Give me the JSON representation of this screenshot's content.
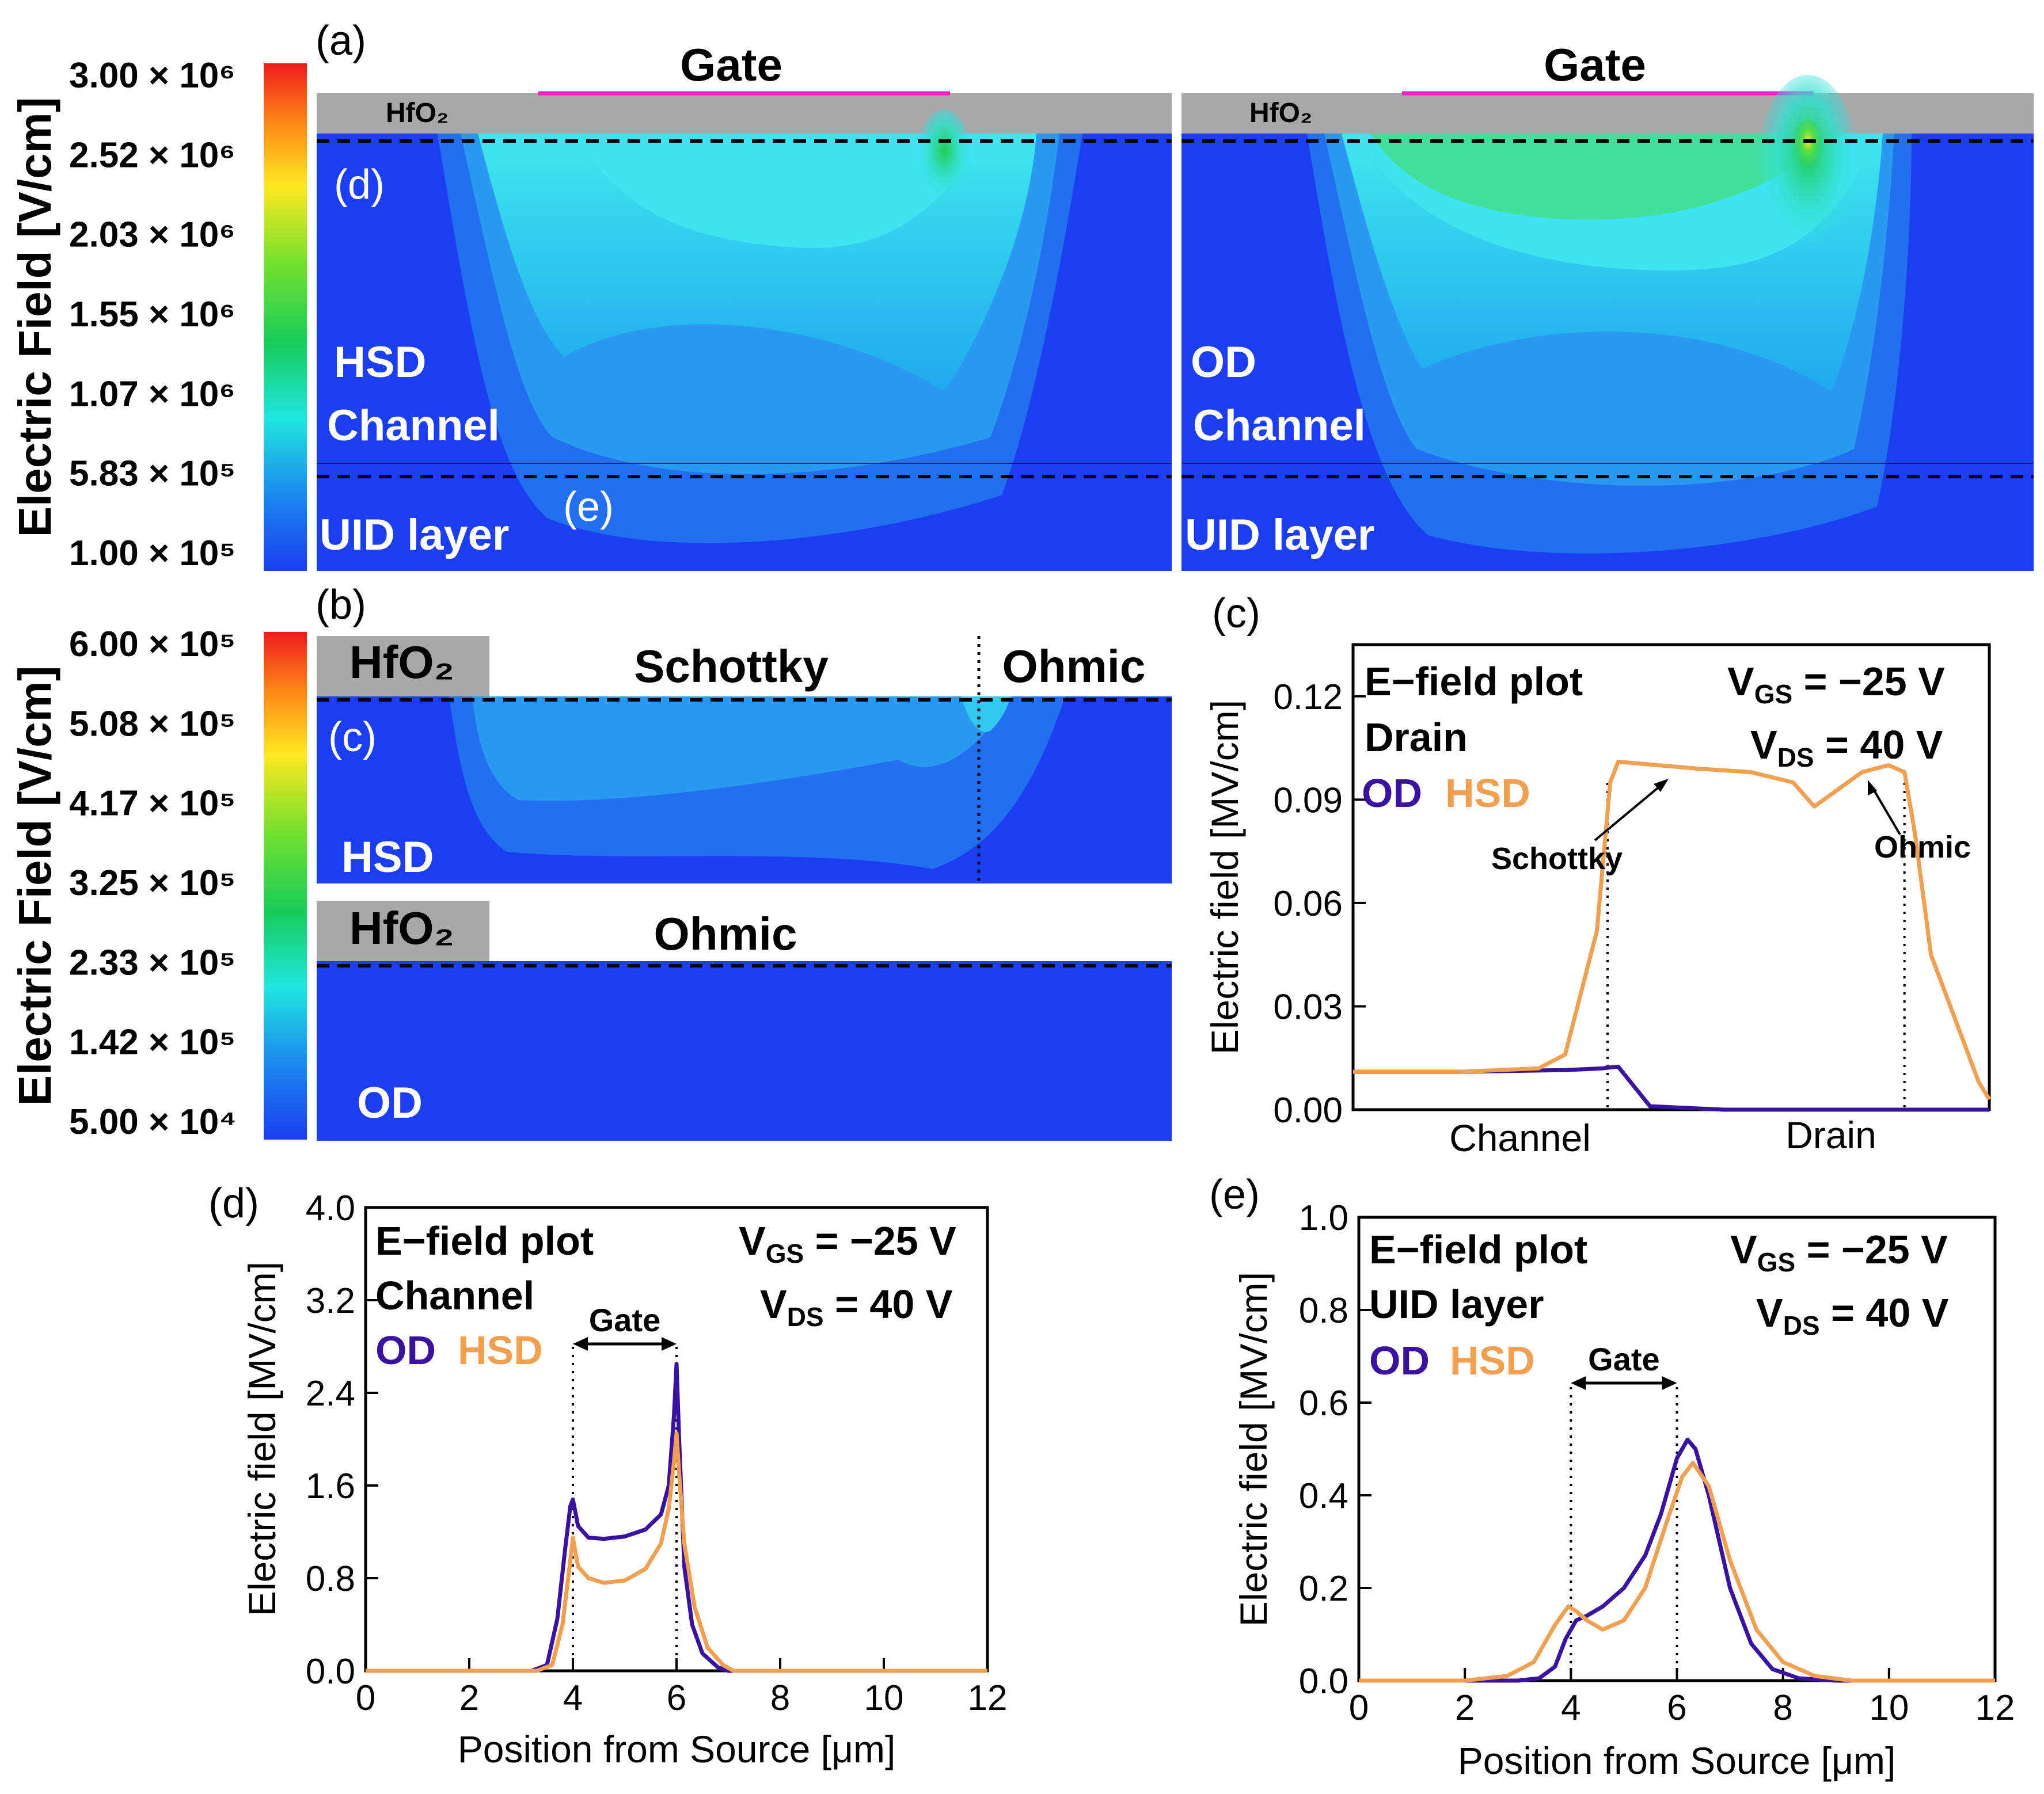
{
  "colors": {
    "field_blue": "#1a3ef0",
    "cyan": "#33e0ee",
    "green": "#22cc44",
    "yellow": "#ffe020",
    "red": "#ee2222",
    "oxide": "#a8a8a8",
    "gate_line": "#ee22cc",
    "od": "#3a12a0",
    "hsd": "#f0a050"
  },
  "colorbar_a": {
    "title": "Electric Field [V/cm]",
    "ticks": [
      "3.00 × 10⁶",
      "2.52 × 10⁶",
      "2.03 × 10⁶",
      "1.55 × 10⁶",
      "1.07 × 10⁶",
      "5.83 × 10⁵",
      "1.00 × 10⁵"
    ]
  },
  "colorbar_b": {
    "title": "Electric Field [V/cm]",
    "ticks": [
      "6.00 × 10⁵",
      "5.08 × 10⁵",
      "4.17 × 10⁵",
      "3.25 × 10⁵",
      "2.33 × 10⁵",
      "1.42 × 10⁵",
      "5.00 × 10⁴"
    ]
  },
  "panel_a": {
    "label": "(a)",
    "hsd": {
      "gate": "Gate",
      "oxide": "HfO₂",
      "ref_d": "(d)",
      "ref_e": "(e)",
      "device": "HSD",
      "channel": "Channel",
      "uid": "UID layer"
    },
    "od": {
      "gate": "Gate",
      "oxide": "HfO₂",
      "device": "OD",
      "channel": "Channel",
      "uid": "UID layer"
    }
  },
  "panel_b": {
    "label": "(b)",
    "hsd": {
      "oxide": "HfO₂",
      "schottky": "Schottky",
      "ohmic": "Ohmic",
      "ref_c": "(c)",
      "device": "HSD"
    },
    "od": {
      "oxide": "HfO₂",
      "ohmic": "Ohmic",
      "device": "OD"
    }
  },
  "chart_data": [
    {
      "id": "c",
      "panel_label": "(c)",
      "type": "line",
      "title_lines": [
        "E−field plot",
        "Drain"
      ],
      "bias": {
        "vgs": "V",
        "vgs_sub": "GS",
        "vgs_val": " = −25 V",
        "vds": "V",
        "vds_sub": "DS",
        "vds_val": " = 40 V"
      },
      "legend": [
        "OD",
        "HSD"
      ],
      "ylabel": "Electric field [MV/cm]",
      "xlabel": "",
      "x_region_labels": [
        "Channel",
        "Drain"
      ],
      "ylim": [
        0,
        0.135
      ],
      "xlim": [
        0,
        12
      ],
      "yticks": [
        0.0,
        0.03,
        0.06,
        0.09,
        0.12
      ],
      "ytick_labels": [
        "0.00",
        "0.03",
        "0.06",
        "0.09",
        "0.12"
      ],
      "annotations": [
        {
          "text": "Schottky"
        },
        {
          "text": "Ohmic"
        }
      ],
      "guides_x": [
        4.8,
        10.4
      ],
      "series": [
        {
          "name": "OD",
          "x": [
            0,
            2,
            4,
            4.7,
            5.0,
            5.6,
            7,
            9,
            12
          ],
          "y": [
            0.011,
            0.011,
            0.0115,
            0.012,
            0.0125,
            0.001,
            0.0,
            0.0,
            0.0
          ]
        },
        {
          "name": "HSD",
          "x": [
            0,
            2,
            3.5,
            4.0,
            4.6,
            4.85,
            5.0,
            6.5,
            7.5,
            8.3,
            8.7,
            9.6,
            10.1,
            10.4,
            10.6,
            10.9,
            11.8,
            12
          ],
          "y": [
            0.011,
            0.011,
            0.012,
            0.016,
            0.052,
            0.095,
            0.101,
            0.099,
            0.098,
            0.095,
            0.088,
            0.098,
            0.1,
            0.098,
            0.08,
            0.045,
            0.008,
            0.003
          ]
        }
      ]
    },
    {
      "id": "d",
      "panel_label": "(d)",
      "type": "line",
      "title_lines": [
        "E−field plot",
        "Channel"
      ],
      "bias": {
        "vgs": "V",
        "vgs_sub": "GS",
        "vgs_val": " = −25 V",
        "vds": "V",
        "vds_sub": "DS",
        "vds_val": " = 40 V"
      },
      "legend": [
        "OD",
        "HSD"
      ],
      "gate_label": "Gate",
      "gate_x": [
        4,
        6
      ],
      "ylabel": "Electric field [MV/cm]",
      "xlabel": "Position from Source [μm]",
      "xlim": [
        0,
        12
      ],
      "ylim": [
        0,
        4.0
      ],
      "xticks": [
        0,
        2,
        4,
        6,
        8,
        10,
        12
      ],
      "xtick_labels": [
        "0",
        "2",
        "4",
        "6",
        "8",
        "10",
        "12"
      ],
      "yticks": [
        0.0,
        0.8,
        1.6,
        2.4,
        3.2,
        4.0
      ],
      "ytick_labels": [
        "0.0",
        "0.8",
        "1.6",
        "2.4",
        "3.2",
        "4.0"
      ],
      "series": [
        {
          "name": "OD",
          "x": [
            0,
            3.2,
            3.5,
            3.7,
            3.85,
            3.95,
            4.0,
            4.1,
            4.3,
            4.6,
            5.0,
            5.4,
            5.7,
            5.85,
            5.95,
            6.0,
            6.05,
            6.15,
            6.3,
            6.5,
            6.8,
            7.0,
            12
          ],
          "y": [
            0,
            0,
            0.05,
            0.45,
            1.05,
            1.42,
            1.48,
            1.25,
            1.15,
            1.14,
            1.16,
            1.22,
            1.35,
            1.6,
            2.2,
            2.65,
            2.0,
            0.9,
            0.4,
            0.15,
            0.03,
            0,
            0
          ]
        },
        {
          "name": "HSD",
          "x": [
            0,
            3.3,
            3.6,
            3.8,
            3.95,
            4.0,
            4.1,
            4.3,
            4.6,
            5.0,
            5.4,
            5.7,
            5.85,
            5.95,
            6.0,
            6.05,
            6.15,
            6.35,
            6.6,
            6.9,
            7.1,
            12
          ],
          "y": [
            0,
            0,
            0.05,
            0.4,
            0.95,
            1.15,
            0.9,
            0.8,
            0.76,
            0.78,
            0.88,
            1.1,
            1.4,
            1.8,
            2.05,
            1.7,
            1.1,
            0.55,
            0.2,
            0.05,
            0,
            0
          ]
        }
      ]
    },
    {
      "id": "e",
      "panel_label": "(e)",
      "type": "line",
      "title_lines": [
        "E−field plot",
        "UID layer"
      ],
      "bias": {
        "vgs": "V",
        "vgs_sub": "GS",
        "vgs_val": " = −25 V",
        "vds": "V",
        "vds_sub": "DS",
        "vds_val": " = 40 V"
      },
      "legend": [
        "OD",
        "HSD"
      ],
      "gate_label": "Gate",
      "gate_x": [
        4,
        6
      ],
      "ylabel": "Electric field [MV/cm]",
      "xlabel": "Position from Source [μm]",
      "xlim": [
        0,
        12
      ],
      "ylim": [
        0,
        1.0
      ],
      "xticks": [
        0,
        2,
        4,
        6,
        8,
        10,
        12
      ],
      "xtick_labels": [
        "0",
        "2",
        "4",
        "6",
        "8",
        "10",
        "12"
      ],
      "yticks": [
        0.0,
        0.2,
        0.4,
        0.6,
        0.8,
        1.0
      ],
      "ytick_labels": [
        "0.0",
        "0.2",
        "0.4",
        "0.6",
        "0.8",
        "1.0"
      ],
      "series": [
        {
          "name": "OD",
          "x": [
            0,
            3.0,
            3.4,
            3.7,
            3.9,
            4.1,
            4.3,
            4.6,
            5.0,
            5.4,
            5.7,
            6.0,
            6.2,
            6.35,
            6.6,
            7.0,
            7.4,
            7.8,
            8.3,
            9,
            12
          ],
          "y": [
            0,
            0,
            0.005,
            0.03,
            0.09,
            0.13,
            0.14,
            0.16,
            0.2,
            0.27,
            0.36,
            0.48,
            0.52,
            0.5,
            0.4,
            0.2,
            0.08,
            0.025,
            0.005,
            0,
            0
          ]
        },
        {
          "name": "HSD",
          "x": [
            0,
            2.0,
            2.8,
            3.3,
            3.7,
            3.95,
            4.1,
            4.3,
            4.6,
            5.0,
            5.4,
            5.8,
            6.1,
            6.3,
            6.6,
            7.0,
            7.5,
            8.0,
            8.6,
            9.3,
            12
          ],
          "y": [
            0,
            0,
            0.01,
            0.04,
            0.12,
            0.16,
            0.15,
            0.13,
            0.11,
            0.13,
            0.2,
            0.34,
            0.44,
            0.47,
            0.42,
            0.26,
            0.11,
            0.04,
            0.01,
            0,
            0
          ]
        }
      ]
    }
  ]
}
